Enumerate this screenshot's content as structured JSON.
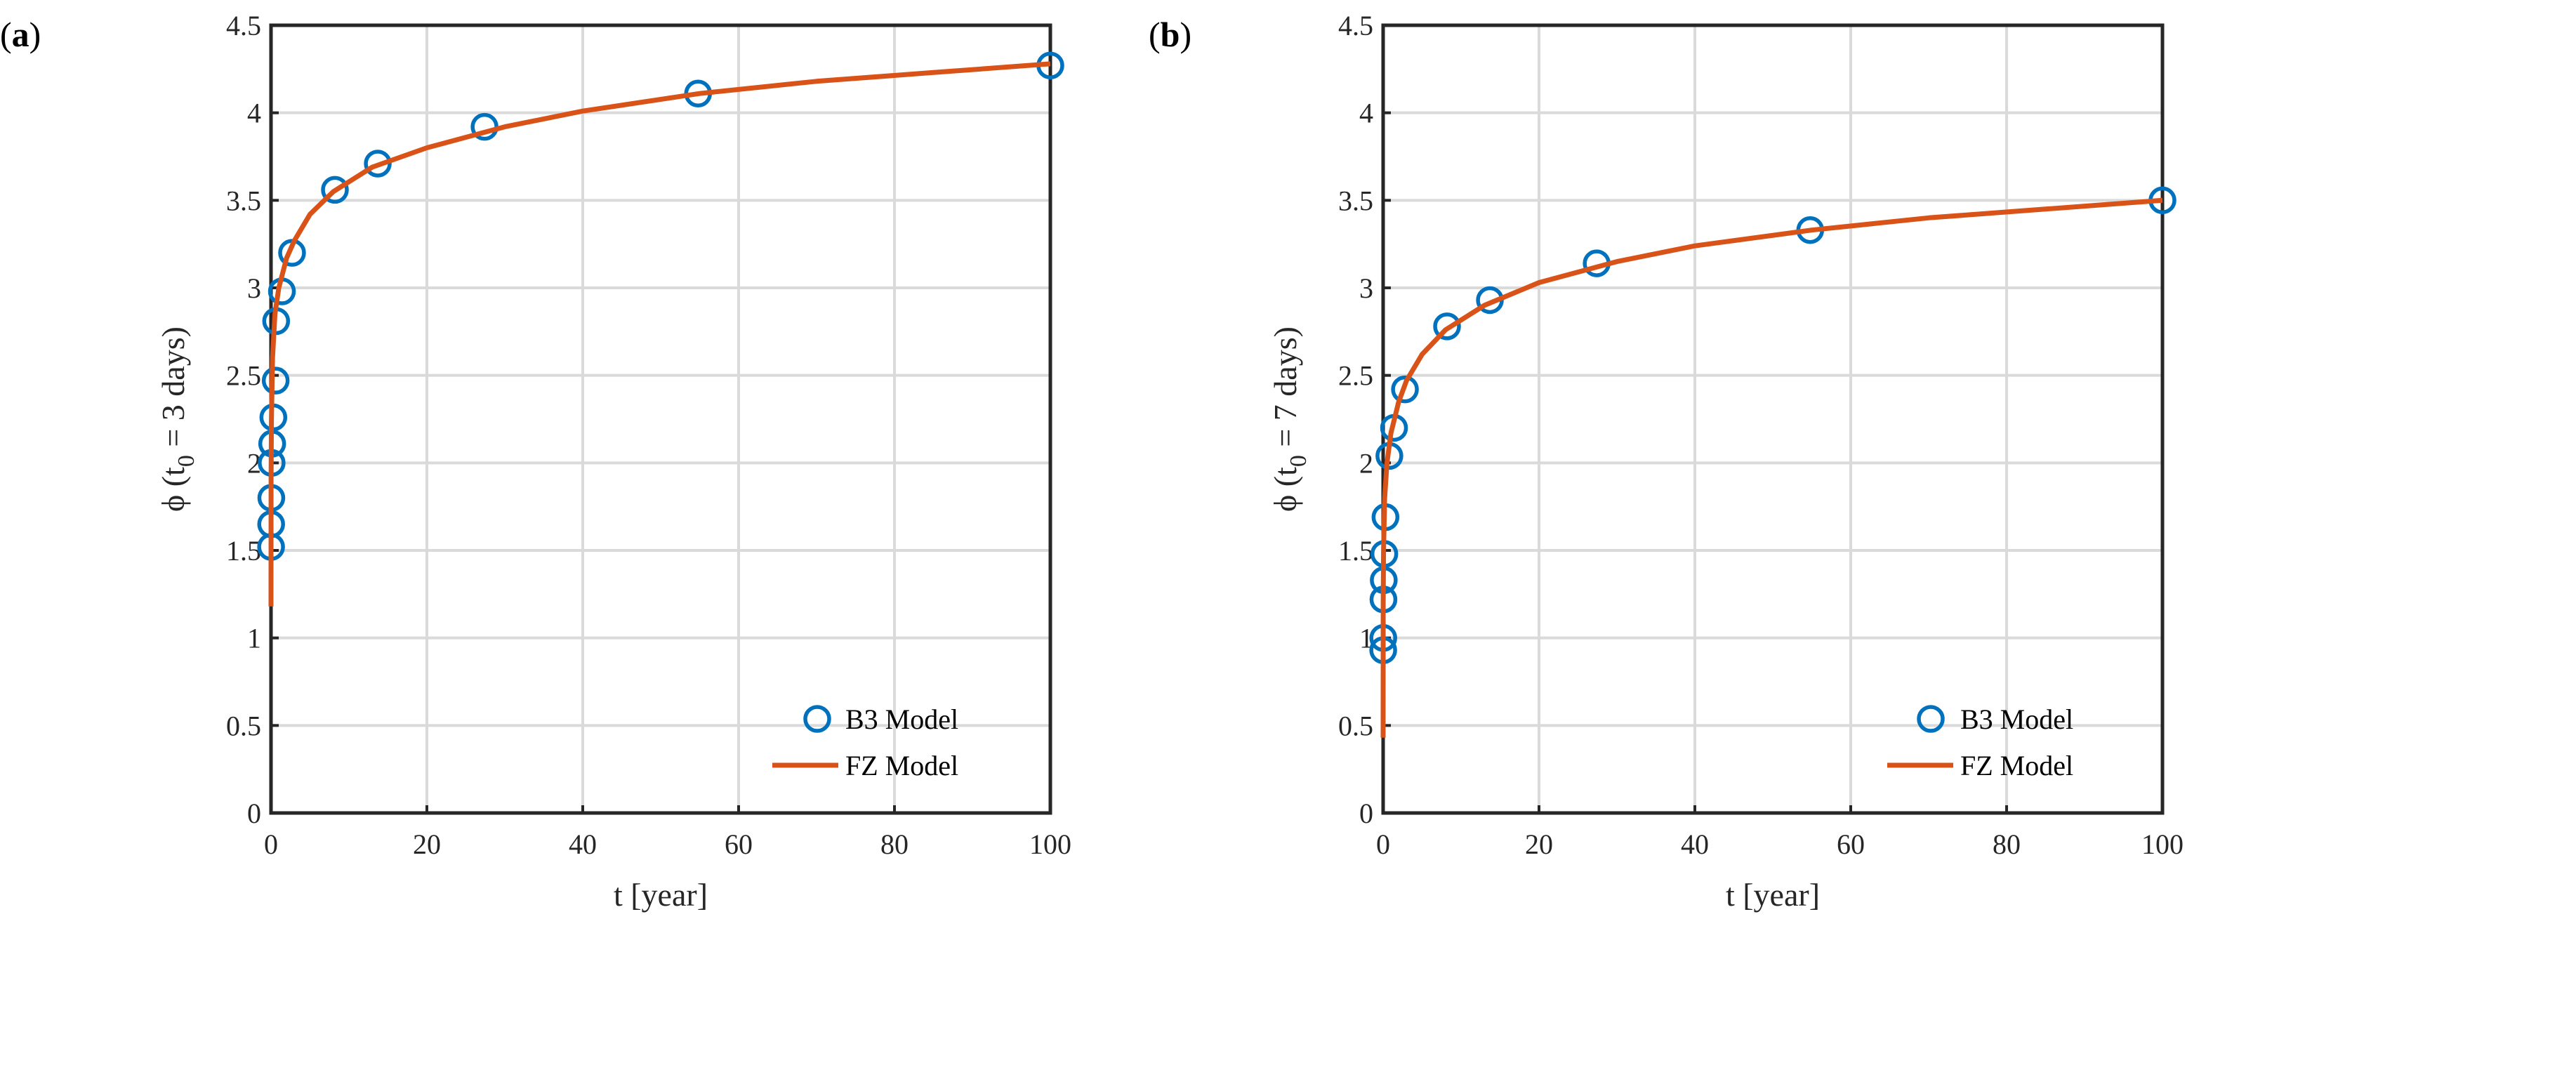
{
  "chart_data": [
    {
      "type": "line",
      "panel_label": [
        "(",
        "a",
        ")"
      ],
      "xlabel": "t [year]",
      "ylabel_parts": [
        "ϕ (t",
        "0",
        " = 3 days)"
      ],
      "xlim": [
        0,
        100
      ],
      "ylim": [
        0,
        4.5
      ],
      "xticks": [
        "0",
        "20",
        "40",
        "60",
        "80",
        "100"
      ],
      "yticks": [
        "0",
        "0.5",
        "1",
        "1.5",
        "2",
        "2.5",
        "3",
        "3.5",
        "4",
        "4.5"
      ],
      "grid": true,
      "legend_position": "bottom-right",
      "series": [
        {
          "name": "B3 Model",
          "style": "markers",
          "color": "#0072BD",
          "x": [
            0.01,
            0.02,
            0.04,
            0.08,
            0.15,
            0.3,
            0.6,
            0.66,
            1.4,
            2.7,
            8.2,
            13.7,
            27.4,
            54.8,
            100
          ],
          "y": [
            1.52,
            1.65,
            1.8,
            2.0,
            2.11,
            2.26,
            2.47,
            2.81,
            2.98,
            3.2,
            3.56,
            3.71,
            3.92,
            4.11,
            4.27
          ]
        },
        {
          "name": "FZ Model",
          "style": "line",
          "color": "#D95319",
          "x": [
            0,
            0.01,
            0.05,
            0.2,
            0.5,
            1,
            2,
            3,
            5,
            8,
            13,
            20,
            30,
            40,
            55,
            70,
            85,
            100
          ],
          "y": [
            1.18,
            1.9,
            2.25,
            2.6,
            2.85,
            3.0,
            3.17,
            3.27,
            3.42,
            3.55,
            3.69,
            3.8,
            3.92,
            4.01,
            4.11,
            4.18,
            4.23,
            4.28
          ]
        }
      ]
    },
    {
      "type": "line",
      "panel_label": [
        "(",
        "b",
        ")"
      ],
      "xlabel": "t [year]",
      "ylabel_parts": [
        "ϕ (t",
        "0",
        " = 7 days)"
      ],
      "xlim": [
        0,
        100
      ],
      "ylim": [
        0,
        4.5
      ],
      "xticks": [
        "0",
        "20",
        "40",
        "60",
        "80",
        "100"
      ],
      "yticks": [
        "0",
        "0.5",
        "1",
        "1.5",
        "2",
        "2.5",
        "3",
        "3.5",
        "4",
        "4.5"
      ],
      "grid": true,
      "legend_position": "bottom-right",
      "series": [
        {
          "name": "B3 Model",
          "style": "markers",
          "color": "#0072BD",
          "x": [
            0.01,
            0.02,
            0.04,
            0.08,
            0.15,
            0.3,
            0.8,
            1.4,
            2.8,
            8.2,
            13.7,
            27.4,
            54.8,
            100
          ],
          "y": [
            0.93,
            1.0,
            1.22,
            1.33,
            1.48,
            1.69,
            2.04,
            2.2,
            2.42,
            2.78,
            2.93,
            3.14,
            3.33,
            3.5
          ]
        },
        {
          "name": "FZ Model",
          "style": "line",
          "color": "#D95319",
          "x": [
            0,
            0.01,
            0.05,
            0.2,
            0.5,
            1,
            2,
            3,
            5,
            8,
            13,
            20,
            30,
            40,
            55,
            70,
            85,
            100
          ],
          "y": [
            0.43,
            1.2,
            1.5,
            1.8,
            2.0,
            2.17,
            2.35,
            2.47,
            2.62,
            2.76,
            2.9,
            3.03,
            3.15,
            3.24,
            3.33,
            3.4,
            3.45,
            3.5
          ]
        }
      ]
    }
  ]
}
